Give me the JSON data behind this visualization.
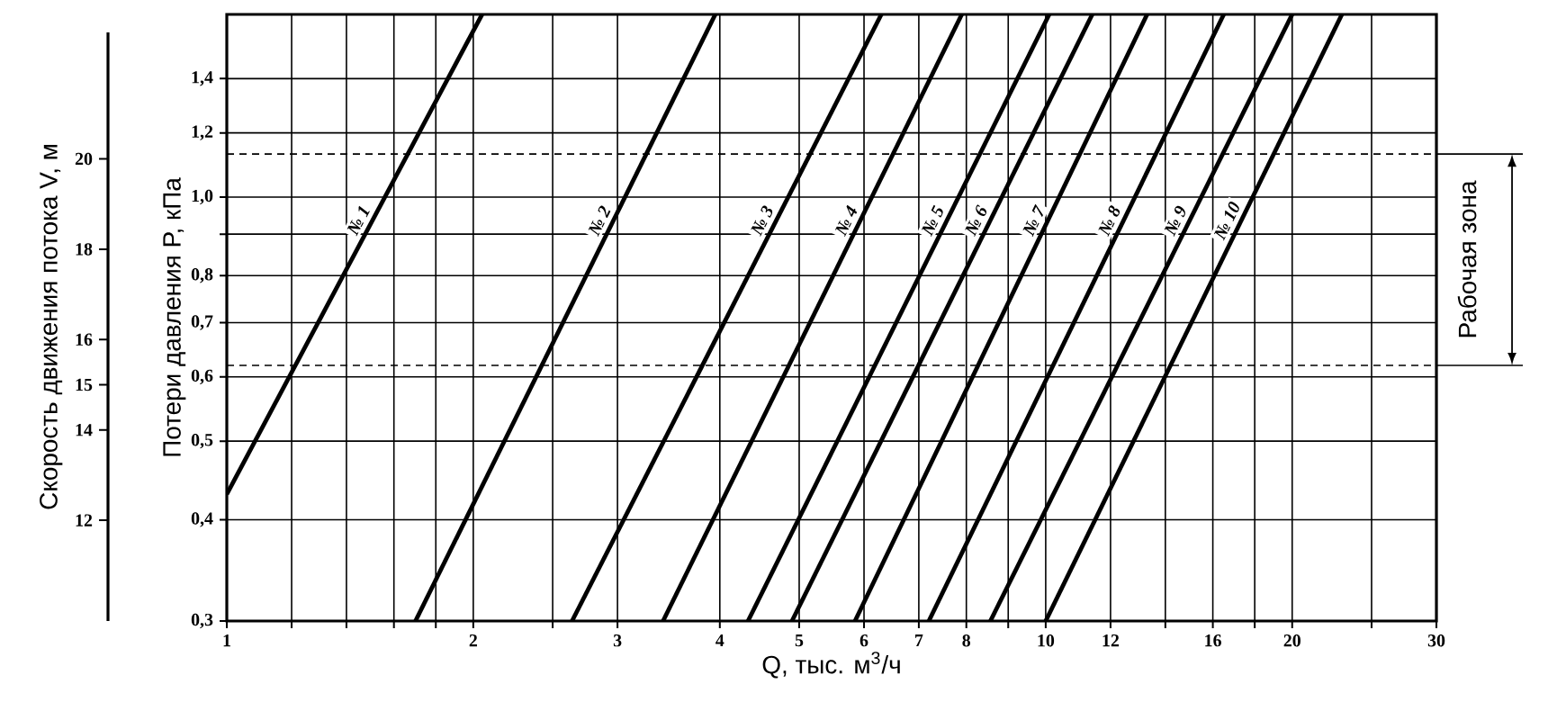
{
  "chart_data": {
    "type": "line",
    "xlabel": "Q, тыс. м$^{3}$/ч",
    "ylabel": "Потери давления P, кПа",
    "y2label": "Скорость движения потока V, м",
    "log": "xy",
    "grid": true,
    "xlim": [
      1,
      30
    ],
    "xticks": [
      1,
      {
        "value": 1.2,
        "label": null
      },
      {
        "value": 1.4,
        "label": null
      },
      {
        "value": 1.6,
        "label": null
      },
      {
        "value": 1.8,
        "label": null
      },
      2,
      {
        "value": 2.5,
        "label": null
      },
      3,
      4,
      5,
      6,
      7,
      8,
      {
        "value": 9,
        "label": null
      },
      10,
      12,
      {
        "value": 14,
        "label": null
      },
      16,
      {
        "value": 18,
        "label": null
      },
      20,
      {
        "value": 25,
        "label": null
      },
      30
    ],
    "ylim": [
      0.3,
      1.68
    ],
    "yticks": [
      {
        "value": 0.3,
        "label": "0,3"
      },
      {
        "value": 0.4,
        "label": "0,4"
      },
      {
        "value": 0.5,
        "label": "0,5"
      },
      {
        "value": 0.6,
        "label": "0,6"
      },
      {
        "value": 0.7,
        "label": "0,7"
      },
      {
        "value": 0.8,
        "label": "0,8"
      },
      {
        "value": 0.9,
        "label": null
      },
      {
        "value": 1.0,
        "label": "1,0"
      },
      {
        "value": 1.2,
        "label": "1,2"
      },
      {
        "value": 1.4,
        "label": "1,4"
      }
    ],
    "y2lim": [
      9.77,
      22.8
    ],
    "y2ticks": [
      12,
      14,
      15,
      16,
      18,
      20
    ],
    "ref_lines": [
      {
        "axis": "y",
        "value": 0.62,
        "line_style": "dashed",
        "color": "#000000"
      },
      {
        "axis": "y",
        "value": 1.13,
        "line_style": "dashed",
        "color": "#000000"
      }
    ],
    "annotations": [
      "Рабочая зона"
    ],
    "series": [
      {
        "name": "№ 1",
        "color": "#000000",
        "x": [
          1,
          2.05
        ],
        "values": [
          0.43,
          1.68
        ]
      },
      {
        "name": "№ 2",
        "color": "#000000",
        "x": [
          1.7,
          3.95
        ],
        "values": [
          0.3,
          1.68
        ]
      },
      {
        "name": "№ 3",
        "color": "#000000",
        "x": [
          2.64,
          6.3
        ],
        "values": [
          0.3,
          1.68
        ]
      },
      {
        "name": "№ 4",
        "color": "#000000",
        "x": [
          3.41,
          7.9
        ],
        "values": [
          0.3,
          1.68
        ]
      },
      {
        "name": "№ 5",
        "color": "#000000",
        "x": [
          4.33,
          10.1
        ],
        "values": [
          0.3,
          1.68
        ]
      },
      {
        "name": "№ 6",
        "color": "#000000",
        "x": [
          4.9,
          11.4
        ],
        "values": [
          0.3,
          1.68
        ]
      },
      {
        "name": "№ 7",
        "color": "#000000",
        "x": [
          5.85,
          13.3
        ],
        "values": [
          0.3,
          1.68
        ]
      },
      {
        "name": "№ 8",
        "color": "#000000",
        "x": [
          7.2,
          16.5
        ],
        "values": [
          0.3,
          1.68
        ]
      },
      {
        "name": "№ 9",
        "color": "#000000",
        "x": [
          8.56,
          20
        ],
        "values": [
          0.3,
          1.68
        ]
      },
      {
        "name": "№ 10",
        "color": "#000000",
        "x": [
          10,
          23
        ],
        "values": [
          0.3,
          1.68
        ]
      }
    ]
  }
}
